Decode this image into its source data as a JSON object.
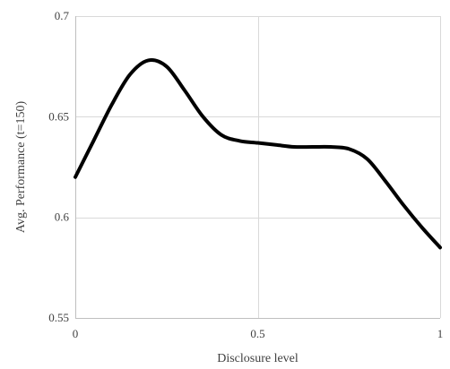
{
  "chart_data": {
    "type": "line",
    "title": "",
    "xlabel": "Disclosure level",
    "ylabel": "Avg. Performance (t=150)",
    "xlim": [
      0,
      1
    ],
    "ylim": [
      0.55,
      0.7
    ],
    "x_ticks": [
      0,
      0.5,
      1
    ],
    "x_tick_labels": [
      "0",
      "0.5",
      "1"
    ],
    "y_ticks": [
      0.55,
      0.6,
      0.65,
      0.7
    ],
    "y_tick_labels": [
      "0.55",
      "0.6",
      "0.65",
      "0.7"
    ],
    "grid": true,
    "legend": "none",
    "line_color": "#000000",
    "series": [
      {
        "x": [
          0,
          0.05,
          0.1,
          0.15,
          0.2,
          0.25,
          0.3,
          0.35,
          0.4,
          0.45,
          0.5,
          0.55,
          0.6,
          0.65,
          0.7,
          0.75,
          0.8,
          0.85,
          0.9,
          0.95,
          1
        ],
        "values": [
          0.62,
          0.638,
          0.656,
          0.671,
          0.678,
          0.675,
          0.663,
          0.65,
          0.641,
          0.638,
          0.637,
          0.636,
          0.635,
          0.635,
          0.635,
          0.634,
          0.629,
          0.618,
          0.606,
          0.595,
          0.585
        ]
      }
    ]
  }
}
